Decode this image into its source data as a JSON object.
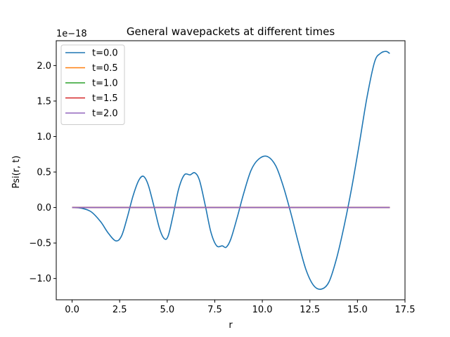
{
  "chart_data": {
    "type": "line",
    "title": "General wavepackets at different times",
    "xlabel": "r",
    "ylabel": "Psi(r, t)",
    "y_offset_label": "1e−18",
    "xlim": [
      -0.833,
      17.5
    ],
    "ylim": [
      -1.3,
      2.35
    ],
    "xticks": [
      0.0,
      2.5,
      5.0,
      7.5,
      10.0,
      12.5,
      15.0,
      17.5
    ],
    "xtick_labels": [
      "0.0",
      "2.5",
      "5.0",
      "7.5",
      "10.0",
      "12.5",
      "15.0",
      "17.5"
    ],
    "yticks": [
      -1.0,
      -0.5,
      0.0,
      0.5,
      1.0,
      1.5,
      2.0
    ],
    "ytick_labels": [
      "−1.0",
      "−0.5",
      "0.0",
      "0.5",
      "1.0",
      "1.5",
      "2.0"
    ],
    "grid": false,
    "legend_position": "top-left",
    "series": [
      {
        "name": "t=0.0",
        "color": "#1f77b4",
        "x": [
          0.0,
          0.5,
          1.0,
          1.5,
          1.9,
          2.3,
          2.6,
          2.9,
          3.2,
          3.5,
          3.75,
          4.0,
          4.3,
          4.6,
          4.85,
          5.05,
          5.3,
          5.6,
          5.9,
          6.2,
          6.45,
          6.7,
          7.0,
          7.3,
          7.6,
          7.9,
          8.1,
          8.35,
          8.7,
          9.0,
          9.4,
          9.8,
          10.25,
          10.7,
          11.1,
          11.5,
          11.9,
          12.3,
          12.7,
          13.1,
          13.5,
          13.9,
          14.3,
          14.7,
          15.1,
          15.5,
          15.9,
          16.2,
          16.5,
          16.7
        ],
        "y": [
          0.0,
          -0.01,
          -0.06,
          -0.2,
          -0.36,
          -0.47,
          -0.4,
          -0.14,
          0.16,
          0.38,
          0.44,
          0.32,
          0.02,
          -0.3,
          -0.44,
          -0.4,
          -0.12,
          0.26,
          0.46,
          0.46,
          0.49,
          0.38,
          0.03,
          -0.35,
          -0.54,
          -0.54,
          -0.56,
          -0.44,
          -0.12,
          0.18,
          0.52,
          0.68,
          0.72,
          0.59,
          0.3,
          -0.08,
          -0.5,
          -0.88,
          -1.1,
          -1.15,
          -1.05,
          -0.72,
          -0.26,
          0.28,
          0.9,
          1.55,
          2.05,
          2.17,
          2.2,
          2.17
        ]
      },
      {
        "name": "t=0.5",
        "color": "#ff7f0e",
        "x": [
          0.0,
          16.7
        ],
        "y": [
          0.0,
          0.0
        ]
      },
      {
        "name": "t=1.0",
        "color": "#2ca02c",
        "x": [
          0.0,
          16.7
        ],
        "y": [
          0.0,
          0.0
        ]
      },
      {
        "name": "t=1.5",
        "color": "#d62728",
        "x": [
          0.0,
          16.7
        ],
        "y": [
          0.0,
          0.0
        ]
      },
      {
        "name": "t=2.0",
        "color": "#9467bd",
        "x": [
          0.0,
          16.7
        ],
        "y": [
          0.0,
          0.0
        ]
      }
    ]
  }
}
